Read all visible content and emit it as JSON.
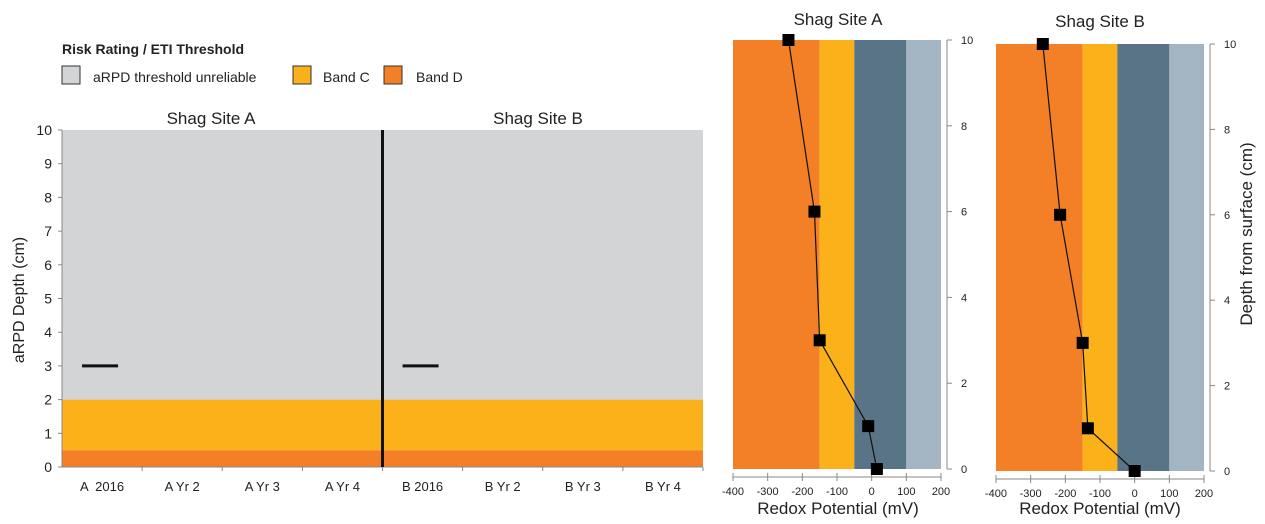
{
  "legend": {
    "title": "Risk Rating / ETI Threshold",
    "items": [
      {
        "label": "aRPD threshold unreliable",
        "color": "#d3d4d6"
      },
      {
        "label": "Band C",
        "color": "#fbb11a"
      },
      {
        "label": "Band D",
        "color": "#f37f26"
      }
    ]
  },
  "chart_data": [
    {
      "type": "bar",
      "panels": [
        "Shag Site A",
        "Shag Site B"
      ],
      "ylabel": "aRPD Depth (cm)",
      "xlabel": "",
      "ylim": [
        0,
        10
      ],
      "yticks": [
        0,
        1,
        2,
        3,
        4,
        5,
        6,
        7,
        8,
        9,
        10
      ],
      "categories": [
        "A  2016",
        "A Yr 2",
        "A Yr 3",
        "A Yr 4",
        "B 2016",
        "B Yr 2",
        "B Yr 3",
        "B Yr 4"
      ],
      "values": [
        3,
        null,
        null,
        null,
        3,
        null,
        null,
        null
      ],
      "bands": [
        {
          "name": "Band D",
          "from": 0,
          "to": 0.5,
          "color": "#f37f26"
        },
        {
          "name": "Band C",
          "from": 0.5,
          "to": 2,
          "color": "#fbb11a"
        },
        {
          "name": "aRPD threshold unreliable",
          "from": 2,
          "to": 10,
          "color": "#d3d4d6"
        }
      ],
      "grid": false,
      "legend_position": "top-left"
    },
    {
      "type": "line",
      "title": "Shag Site A",
      "xlabel": "Redox Potential (mV)",
      "ylabel": "",
      "xlim": [
        -400,
        200
      ],
      "ylim": [
        0,
        10
      ],
      "xticks": [
        -400,
        -300,
        -200,
        -100,
        0,
        100,
        200
      ],
      "yticks": [
        0,
        2,
        4,
        6,
        8,
        10
      ],
      "x": [
        15,
        -10,
        -150,
        -165,
        -240
      ],
      "y": [
        0,
        1,
        3,
        6,
        10
      ],
      "bands": [
        {
          "from": -400,
          "to": -150,
          "color": "#f37f26"
        },
        {
          "from": -150,
          "to": -50,
          "color": "#fbb11a"
        },
        {
          "from": -50,
          "to": 100,
          "color": "#587486"
        },
        {
          "from": 100,
          "to": 200,
          "color": "#a3b5c2"
        }
      ]
    },
    {
      "type": "line",
      "title": "Shag Site B",
      "xlabel": "Redox Potential (mV)",
      "ylabel": "Depth from surface (cm)",
      "xlim": [
        -400,
        200
      ],
      "ylim": [
        0,
        10
      ],
      "xticks": [
        -400,
        -300,
        -200,
        -100,
        0,
        100,
        200
      ],
      "yticks": [
        0,
        2,
        4,
        6,
        8,
        10
      ],
      "x": [
        0,
        -135,
        -150,
        -215,
        -265
      ],
      "y": [
        0,
        1,
        3,
        6,
        10
      ],
      "bands": [
        {
          "from": -400,
          "to": -150,
          "color": "#f37f26"
        },
        {
          "from": -150,
          "to": -50,
          "color": "#fbb11a"
        },
        {
          "from": -50,
          "to": 100,
          "color": "#587486"
        },
        {
          "from": 100,
          "to": 200,
          "color": "#a3b5c2"
        }
      ]
    }
  ]
}
